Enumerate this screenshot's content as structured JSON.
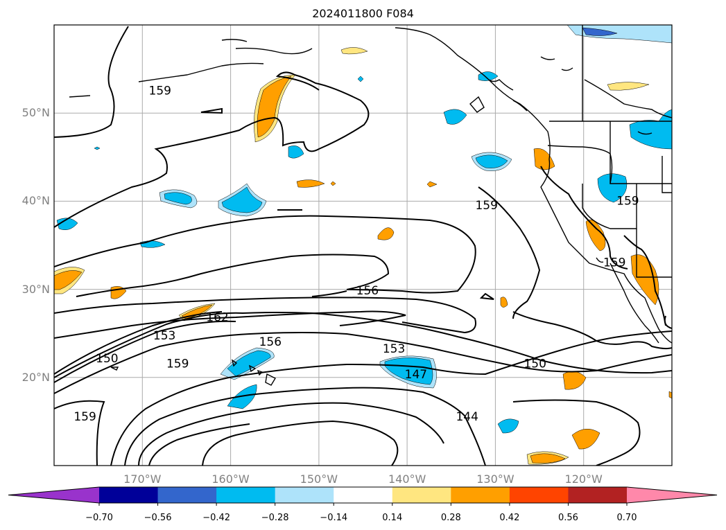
{
  "title": "2024011800 F084",
  "lat_labels": [
    {
      "value": 50,
      "text": "50°N"
    },
    {
      "value": 40,
      "text": "40°N"
    },
    {
      "value": 30,
      "text": "30°N"
    },
    {
      "value": 20,
      "text": "20°N"
    }
  ],
  "lon_labels": [
    {
      "value": -170,
      "text": "170°W"
    },
    {
      "value": -160,
      "text": "160°W"
    },
    {
      "value": -150,
      "text": "150°W"
    },
    {
      "value": -140,
      "text": "140°W"
    },
    {
      "value": -130,
      "text": "130°W"
    },
    {
      "value": -120,
      "text": "120°W"
    }
  ],
  "colorbar": {
    "ticks": [
      "−0.70",
      "−0.56",
      "−0.42",
      "−0.28",
      "−0.14",
      "0.14",
      "0.28",
      "0.42",
      "0.56",
      "0.70"
    ],
    "colors": [
      "#9933cc",
      "#000099",
      "#3366cc",
      "#00bbf0",
      "#aee3fa",
      "#ffffff",
      "#ffe680",
      "#ff9f00",
      "#ff4400",
      "#b22222",
      "#ff88aa"
    ]
  },
  "contour_labels": [
    {
      "text": "159",
      "lon": -168.0,
      "lat": 52.5
    },
    {
      "text": "159",
      "lon": -131.0,
      "lat": 39.5
    },
    {
      "text": "159",
      "lon": -115.0,
      "lat": 40.0
    },
    {
      "text": "159",
      "lon": -116.5,
      "lat": 33.0
    },
    {
      "text": "156",
      "lon": -144.5,
      "lat": 29.8
    },
    {
      "text": "162",
      "lon": -161.5,
      "lat": 26.8
    },
    {
      "text": "153",
      "lon": -167.5,
      "lat": 24.7
    },
    {
      "text": "150",
      "lon": -174.0,
      "lat": 22.1
    },
    {
      "text": "159",
      "lon": -166.0,
      "lat": 21.5
    },
    {
      "text": "156",
      "lon": -155.5,
      "lat": 24.0
    },
    {
      "text": "153",
      "lon": -141.5,
      "lat": 23.2
    },
    {
      "text": "147",
      "lon": -139.0,
      "lat": 20.3
    },
    {
      "text": "150",
      "lon": -125.5,
      "lat": 21.5
    },
    {
      "text": "144",
      "lon": -133.2,
      "lat": 15.5
    },
    {
      "text": "159",
      "lon": -176.5,
      "lat": 15.5
    }
  ],
  "map_extent": {
    "lon_min": -180,
    "lon_max": -110,
    "lat_min": 10,
    "lat_max": 60
  }
}
